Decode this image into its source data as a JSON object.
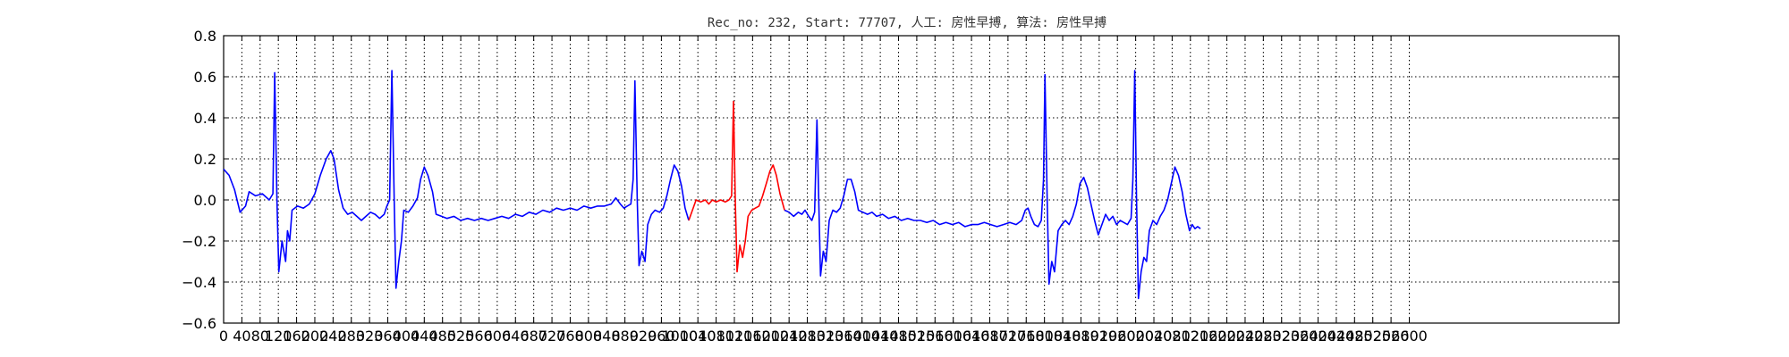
{
  "chart_data": {
    "type": "line",
    "title": "Rec_no: 232, Start: 77707, 人工: 房性早搏, 算法: 房性早搏",
    "xlabel": "",
    "ylabel": "",
    "xlim": [
      0,
      3060
    ],
    "ylim": [
      -0.6,
      0.8
    ],
    "grid": true,
    "x_tick_labels": [
      "0",
      "40",
      "80",
      "120",
      "160",
      "200",
      "240",
      "280",
      "320",
      "360",
      "400",
      "440",
      "480",
      "520",
      "560",
      "600",
      "640",
      "680",
      "720",
      "760",
      "800",
      "840",
      "880",
      "920",
      "960",
      "1000",
      "1040",
      "1080",
      "1120",
      "1160",
      "1200",
      "1240",
      "1280",
      "1320",
      "1360",
      "1400",
      "1440",
      "1480",
      "1520",
      "1560",
      "1600",
      "1640",
      "1680",
      "1720",
      "1760",
      "1800",
      "1840",
      "1880",
      "1920",
      "1960",
      "2000",
      "2040",
      "2080",
      "2120",
      "2160",
      "2200",
      "2240",
      "2280",
      "2320",
      "2360",
      "2400",
      "2440",
      "2480",
      "2520",
      "2560",
      "2600"
    ],
    "y_ticks": [
      -0.6,
      -0.4,
      -0.2,
      0.0,
      0.2,
      0.4,
      0.6,
      0.8
    ],
    "y_tick_labels": [
      "−0.6",
      "−0.4",
      "−0.2",
      "0.0",
      "0.2",
      "0.4",
      "0.6",
      "0.8"
    ],
    "series": [
      {
        "color": "#0000ff",
        "points": [
          [
            0,
            0.15
          ],
          [
            12,
            0.12
          ],
          [
            24,
            0.05
          ],
          [
            36,
            -0.06
          ],
          [
            48,
            -0.03
          ],
          [
            56,
            0.04
          ],
          [
            70,
            0.02
          ],
          [
            85,
            0.03
          ],
          [
            100,
            0.0
          ],
          [
            108,
            0.03
          ],
          [
            112,
            0.62
          ],
          [
            117,
            0.0
          ],
          [
            121,
            -0.35
          ],
          [
            128,
            -0.2
          ],
          [
            136,
            -0.3
          ],
          [
            140,
            -0.15
          ],
          [
            145,
            -0.2
          ],
          [
            150,
            -0.05
          ],
          [
            162,
            -0.03
          ],
          [
            175,
            -0.04
          ],
          [
            188,
            -0.02
          ],
          [
            200,
            0.03
          ],
          [
            212,
            0.12
          ],
          [
            225,
            0.2
          ],
          [
            235,
            0.24
          ],
          [
            242,
            0.2
          ],
          [
            252,
            0.05
          ],
          [
            262,
            -0.04
          ],
          [
            272,
            -0.07
          ],
          [
            282,
            -0.06
          ],
          [
            292,
            -0.08
          ],
          [
            302,
            -0.1
          ],
          [
            312,
            -0.08
          ],
          [
            322,
            -0.06
          ],
          [
            332,
            -0.07
          ],
          [
            342,
            -0.09
          ],
          [
            352,
            -0.07
          ],
          [
            358,
            -0.03
          ],
          [
            364,
            0.0
          ],
          [
            369,
            0.63
          ],
          [
            374,
            0.0
          ],
          [
            378,
            -0.43
          ],
          [
            384,
            -0.3
          ],
          [
            390,
            -0.2
          ],
          [
            395,
            -0.05
          ],
          [
            405,
            -0.06
          ],
          [
            415,
            -0.03
          ],
          [
            425,
            0.01
          ],
          [
            432,
            0.1
          ],
          [
            440,
            0.16
          ],
          [
            448,
            0.12
          ],
          [
            458,
            0.04
          ],
          [
            466,
            -0.07
          ],
          [
            478,
            -0.08
          ],
          [
            490,
            -0.09
          ],
          [
            505,
            -0.08
          ],
          [
            520,
            -0.1
          ],
          [
            535,
            -0.09
          ],
          [
            550,
            -0.1
          ],
          [
            565,
            -0.09
          ],
          [
            580,
            -0.1
          ],
          [
            595,
            -0.09
          ],
          [
            610,
            -0.08
          ],
          [
            625,
            -0.09
          ],
          [
            640,
            -0.07
          ],
          [
            655,
            -0.08
          ],
          [
            670,
            -0.06
          ],
          [
            685,
            -0.07
          ],
          [
            700,
            -0.05
          ],
          [
            715,
            -0.06
          ],
          [
            730,
            -0.04
          ],
          [
            745,
            -0.05
          ],
          [
            760,
            -0.04
          ],
          [
            775,
            -0.05
          ],
          [
            790,
            -0.03
          ],
          [
            805,
            -0.04
          ],
          [
            820,
            -0.03
          ],
          [
            835,
            -0.03
          ],
          [
            850,
            -0.02
          ],
          [
            860,
            0.01
          ],
          [
            870,
            -0.02
          ],
          [
            878,
            -0.04
          ],
          [
            885,
            -0.03
          ],
          [
            893,
            -0.02
          ],
          [
            898,
            0.1
          ],
          [
            902,
            0.58
          ],
          [
            907,
            0.0
          ],
          [
            911,
            -0.32
          ],
          [
            917,
            -0.25
          ],
          [
            924,
            -0.3
          ],
          [
            930,
            -0.12
          ],
          [
            938,
            -0.07
          ],
          [
            946,
            -0.05
          ],
          [
            956,
            -0.06
          ],
          [
            964,
            -0.04
          ],
          [
            972,
            0.02
          ],
          [
            980,
            0.1
          ],
          [
            988,
            0.17
          ],
          [
            996,
            0.14
          ],
          [
            1004,
            0.07
          ],
          [
            1012,
            -0.04
          ],
          [
            1020,
            -0.1
          ]
        ]
      },
      {
        "color": "#ff0000",
        "points": [
          [
            1020,
            -0.1
          ],
          [
            1028,
            -0.05
          ],
          [
            1036,
            0.0
          ],
          [
            1046,
            -0.01
          ],
          [
            1056,
            0.0
          ],
          [
            1064,
            -0.02
          ],
          [
            1072,
            0.0
          ],
          [
            1080,
            -0.01
          ],
          [
            1090,
            0.0
          ],
          [
            1100,
            -0.01
          ],
          [
            1108,
            0.0
          ],
          [
            1114,
            0.02
          ],
          [
            1118,
            0.48
          ],
          [
            1122,
            0.0
          ],
          [
            1126,
            -0.35
          ],
          [
            1132,
            -0.22
          ],
          [
            1138,
            -0.28
          ],
          [
            1144,
            -0.2
          ],
          [
            1150,
            -0.08
          ],
          [
            1158,
            -0.05
          ],
          [
            1166,
            -0.04
          ],
          [
            1174,
            -0.03
          ],
          [
            1182,
            0.02
          ],
          [
            1190,
            0.08
          ],
          [
            1198,
            0.14
          ],
          [
            1205,
            0.17
          ],
          [
            1212,
            0.12
          ],
          [
            1220,
            0.03
          ],
          [
            1230,
            -0.05
          ]
        ]
      },
      {
        "color": "#0000ff",
        "points": [
          [
            1230,
            -0.05
          ],
          [
            1240,
            -0.06
          ],
          [
            1250,
            -0.08
          ],
          [
            1260,
            -0.06
          ],
          [
            1268,
            -0.07
          ],
          [
            1275,
            -0.05
          ],
          [
            1283,
            -0.08
          ],
          [
            1290,
            -0.1
          ],
          [
            1296,
            -0.06
          ],
          [
            1301,
            0.39
          ],
          [
            1305,
            0.0
          ],
          [
            1309,
            -0.37
          ],
          [
            1315,
            -0.25
          ],
          [
            1321,
            -0.3
          ],
          [
            1328,
            -0.1
          ],
          [
            1336,
            -0.05
          ],
          [
            1344,
            -0.06
          ],
          [
            1352,
            -0.04
          ],
          [
            1360,
            0.02
          ],
          [
            1368,
            0.1
          ],
          [
            1376,
            0.1
          ],
          [
            1384,
            0.04
          ],
          [
            1392,
            -0.05
          ],
          [
            1402,
            -0.06
          ],
          [
            1412,
            -0.07
          ],
          [
            1422,
            -0.06
          ],
          [
            1432,
            -0.08
          ],
          [
            1445,
            -0.07
          ],
          [
            1458,
            -0.09
          ],
          [
            1472,
            -0.08
          ],
          [
            1486,
            -0.1
          ],
          [
            1500,
            -0.09
          ],
          [
            1514,
            -0.1
          ],
          [
            1528,
            -0.1
          ],
          [
            1542,
            -0.11
          ],
          [
            1556,
            -0.1
          ],
          [
            1570,
            -0.12
          ],
          [
            1584,
            -0.11
          ],
          [
            1598,
            -0.12
          ],
          [
            1612,
            -0.11
          ],
          [
            1626,
            -0.13
          ],
          [
            1640,
            -0.12
          ],
          [
            1654,
            -0.12
          ],
          [
            1668,
            -0.11
          ],
          [
            1682,
            -0.12
          ],
          [
            1696,
            -0.13
          ],
          [
            1710,
            -0.12
          ],
          [
            1724,
            -0.11
          ],
          [
            1738,
            -0.12
          ],
          [
            1750,
            -0.1
          ],
          [
            1758,
            -0.05
          ],
          [
            1764,
            -0.04
          ],
          [
            1770,
            -0.08
          ],
          [
            1778,
            -0.12
          ],
          [
            1786,
            -0.13
          ],
          [
            1793,
            -0.1
          ],
          [
            1798,
            0.1
          ],
          [
            1801,
            0.61
          ],
          [
            1806,
            0.0
          ],
          [
            1810,
            -0.41
          ],
          [
            1816,
            -0.3
          ],
          [
            1822,
            -0.35
          ],
          [
            1830,
            -0.15
          ],
          [
            1838,
            -0.12
          ],
          [
            1846,
            -0.1
          ],
          [
            1854,
            -0.12
          ],
          [
            1862,
            -0.08
          ],
          [
            1870,
            -0.02
          ],
          [
            1878,
            0.08
          ],
          [
            1886,
            0.11
          ],
          [
            1894,
            0.06
          ],
          [
            1902,
            -0.02
          ],
          [
            1910,
            -0.1
          ],
          [
            1918,
            -0.17
          ],
          [
            1926,
            -0.12
          ],
          [
            1934,
            -0.07
          ],
          [
            1942,
            -0.1
          ],
          [
            1950,
            -0.08
          ],
          [
            1958,
            -0.12
          ],
          [
            1966,
            -0.1
          ],
          [
            1974,
            -0.11
          ],
          [
            1982,
            -0.12
          ],
          [
            1990,
            -0.09
          ],
          [
            1994,
            0.1
          ],
          [
            1998,
            0.63
          ],
          [
            2002,
            0.0
          ],
          [
            2006,
            -0.48
          ],
          [
            2012,
            -0.35
          ],
          [
            2018,
            -0.28
          ],
          [
            2024,
            -0.3
          ],
          [
            2030,
            -0.15
          ],
          [
            2038,
            -0.1
          ],
          [
            2046,
            -0.12
          ],
          [
            2054,
            -0.08
          ],
          [
            2062,
            -0.05
          ],
          [
            2070,
            0.0
          ],
          [
            2078,
            0.08
          ],
          [
            2086,
            0.16
          ],
          [
            2094,
            0.12
          ],
          [
            2102,
            0.04
          ],
          [
            2110,
            -0.07
          ],
          [
            2118,
            -0.15
          ],
          [
            2124,
            -0.12
          ],
          [
            2130,
            -0.14
          ],
          [
            2136,
            -0.13
          ],
          [
            2142,
            -0.14
          ]
        ]
      }
    ]
  }
}
